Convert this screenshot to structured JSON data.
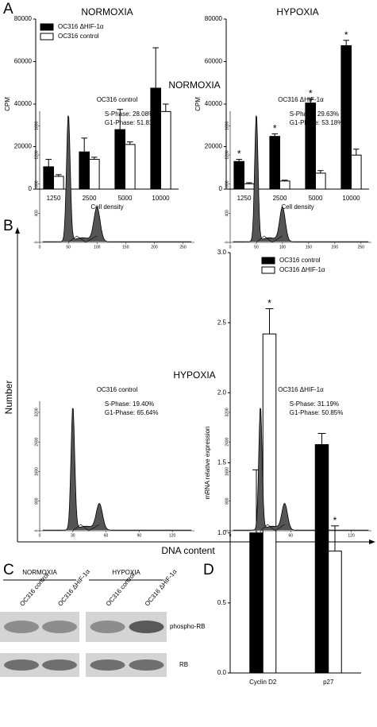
{
  "panel_labels": [
    "A",
    "B",
    "C",
    "D"
  ],
  "chart_data": [
    {
      "type": "bar",
      "title": "NORMOXIA",
      "xlabel": "Cell density",
      "ylabel": "CPM",
      "categories": [
        "1250",
        "2500",
        "5000",
        "10000"
      ],
      "ylim": [
        0,
        80000
      ],
      "yticks": [
        0,
        20000,
        40000,
        60000,
        80000
      ],
      "legend": "upper left",
      "series": [
        {
          "name": "OC316 ΔHIF-1α",
          "color": "#000000",
          "values": [
            10500,
            17500,
            28000,
            47500
          ],
          "errors": [
            3500,
            6500,
            9500,
            19000
          ]
        },
        {
          "name": "OC316 control",
          "color": "#ffffff",
          "values": [
            6000,
            14000,
            21000,
            36500
          ],
          "errors": [
            800,
            1000,
            1200,
            3500
          ]
        }
      ]
    },
    {
      "type": "bar",
      "title": "HYPOXIA",
      "xlabel": "Cell density",
      "ylabel": "CPM",
      "categories": [
        "1250",
        "2500",
        "5000",
        "10000"
      ],
      "ylim": [
        0,
        80000
      ],
      "yticks": [
        0,
        20000,
        40000,
        60000,
        80000
      ],
      "series": [
        {
          "name": "OC316 ΔHIF-1α",
          "color": "#000000",
          "values": [
            13000,
            24800,
            40500,
            67500
          ],
          "errors": [
            1000,
            1200,
            2000,
            2500
          ],
          "annotations": [
            "*",
            "*",
            "*",
            "*"
          ]
        },
        {
          "name": "OC316 control",
          "color": "#ffffff",
          "values": [
            2500,
            3800,
            7500,
            16000
          ],
          "errors": [
            500,
            400,
            1200,
            2800
          ]
        }
      ]
    },
    {
      "type": "bar",
      "ylabel": "mRNA relative expression",
      "categories": [
        "Cyclin D2",
        "p27"
      ],
      "ylim": [
        0,
        3
      ],
      "yticks": [
        {
          "value": 0,
          "label": "0.0"
        },
        0.5,
        {
          "value": 1,
          "label": "1.0"
        },
        1.5,
        {
          "value": 2,
          "label": "2.0"
        },
        2.5,
        {
          "value": 3,
          "label": "3.0"
        }
      ],
      "legend": "upper right",
      "series": [
        {
          "name": "OC316 control",
          "color": "#000000",
          "values": [
            1.0,
            1.63
          ],
          "errors": [
            0.45,
            0.08
          ]
        },
        {
          "name": "OC316 ΔHIF-1α",
          "color": "#ffffff",
          "values": [
            2.42,
            0.87
          ],
          "errors": [
            0.18,
            0.18
          ],
          "annotations": [
            "*",
            "*"
          ]
        }
      ]
    }
  ],
  "flow": {
    "ylabel": "Number",
    "xlabel": "DNA content",
    "rows": [
      {
        "title": "NORMOXIA",
        "xlim": [
          0,
          270
        ],
        "xticks": [
          0,
          50,
          100,
          150,
          200,
          250
        ],
        "ylim": [
          0,
          1800
        ],
        "yticks": [
          0,
          400,
          800,
          1200,
          1600
        ],
        "panels": [
          {
            "title": "OC316 control",
            "s_phase": "S-Phase: 28.08%",
            "g1_phase": "G1-Phase: 51.81%"
          },
          {
            "title": "OC316 ΔHIF-1α",
            "s_phase": "S-Phase: 29.63%",
            "g1_phase": "G1-Phase: 53.18%"
          }
        ]
      },
      {
        "title": "HYPOXIA",
        "xlim": [
          0,
          140
        ],
        "xticks": [
          0,
          30,
          60,
          90,
          120
        ],
        "ylim": [
          0,
          3500
        ],
        "yticks": [
          0,
          800,
          1600,
          2400,
          3200
        ],
        "panels": [
          {
            "title": "OC316 control",
            "s_phase": "S-Phase: 19.40%",
            "g1_phase": "G1-Phase: 65.64%"
          },
          {
            "title": "OC316 ΔHIF-1α",
            "s_phase": "S-Phase: 31.19%",
            "g1_phase": "G1-Phase: 50.85%"
          }
        ]
      }
    ]
  },
  "blot": {
    "groups": [
      "NORMOXIA",
      "HYPOXIA"
    ],
    "lanes": [
      "OC316 control",
      "OC316 ΔHIF-1α",
      "OC316 control",
      "OC316 ΔHIF-1α"
    ],
    "bands": [
      "phospho-RB",
      "RB"
    ]
  }
}
